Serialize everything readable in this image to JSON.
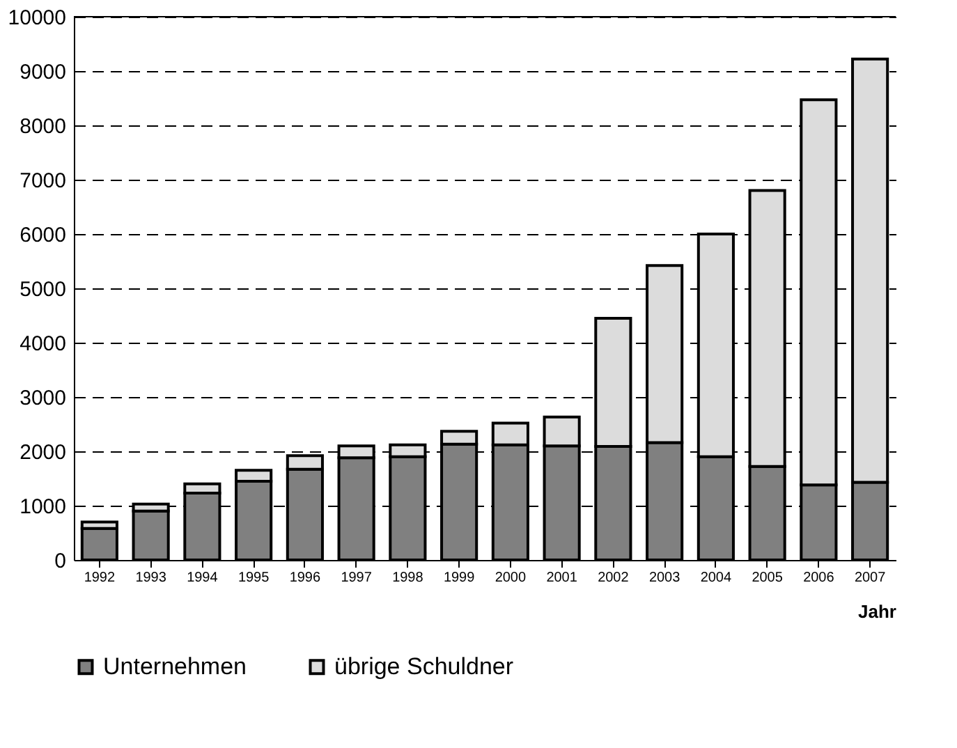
{
  "chart_data": {
    "type": "bar",
    "stacked": true,
    "xlabel": "Jahr",
    "categories": [
      "1992",
      "1993",
      "1994",
      "1995",
      "1996",
      "1997",
      "1998",
      "1999",
      "2000",
      "2001",
      "2002",
      "2003",
      "2004",
      "2005",
      "2006",
      "2007"
    ],
    "series": [
      {
        "name": "Unternehmen",
        "color": "#808080",
        "values": [
          580,
          900,
          1230,
          1450,
          1670,
          1880,
          1900,
          2130,
          2120,
          2100,
          2090,
          2160,
          1900,
          1720,
          1380,
          1430
        ]
      },
      {
        "name": "übrige Schuldner",
        "color": "#dcdcdc",
        "values": [
          120,
          130,
          170,
          200,
          250,
          220,
          220,
          240,
          400,
          530,
          2360,
          3260,
          4100,
          5080,
          7090,
          7790
        ]
      }
    ],
    "ylim": [
      0,
      10000
    ],
    "yticks": [
      0,
      1000,
      2000,
      3000,
      4000,
      5000,
      6000,
      7000,
      8000,
      9000,
      10000
    ],
    "grid": "y",
    "legend": "bottom left"
  }
}
